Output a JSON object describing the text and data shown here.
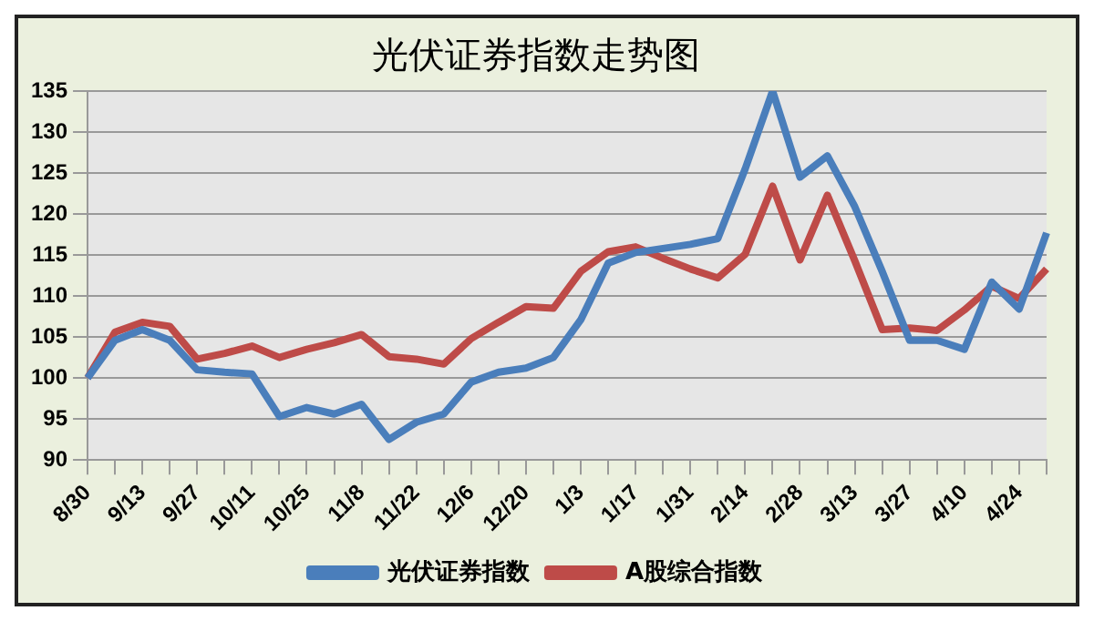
{
  "chart_data": {
    "type": "line",
    "title": "光伏证券指数走势图",
    "categories": [
      "8/30",
      null,
      "9/13",
      null,
      "9/27",
      null,
      "10/11",
      null,
      "10/25",
      null,
      "11/8",
      null,
      "11/22",
      null,
      "12/6",
      null,
      "12/20",
      null,
      "1/3",
      null,
      "1/17",
      null,
      "1/31",
      null,
      "2/14",
      null,
      "2/28",
      null,
      "3/13",
      null,
      "3/27",
      null,
      "4/10",
      null,
      "4/24",
      null
    ],
    "series": [
      {
        "name": "光伏证券指数",
        "color": "#4a7ebb",
        "values": [
          100,
          104.6,
          105.9,
          104.6,
          101,
          100.7,
          100.5,
          95.3,
          96.4,
          95.6,
          96.8,
          92.5,
          94.6,
          95.6,
          99.5,
          100.7,
          101.2,
          102.5,
          107.1,
          114,
          115.3,
          115.8,
          116.3,
          117,
          125.5,
          135,
          124.5,
          127.1,
          120.9,
          113,
          104.6,
          104.6,
          103.5,
          111.7,
          108.4,
          117.7
        ]
      },
      {
        "name": "A股综合指数",
        "color": "#be4b48",
        "values": [
          100,
          105.6,
          106.8,
          106.3,
          102.3,
          103,
          103.9,
          102.5,
          103.5,
          104.3,
          105.3,
          102.6,
          102.3,
          101.7,
          104.8,
          106.8,
          108.7,
          108.5,
          113,
          115.4,
          116,
          114.6,
          113.3,
          112.2,
          115.1,
          123.4,
          114.4,
          122.3,
          114.3,
          105.9,
          106.1,
          105.8,
          108.3,
          111.2,
          109.7,
          113.3
        ]
      }
    ],
    "ylim": [
      90,
      135
    ],
    "yticks": [
      90,
      95,
      100,
      105,
      110,
      115,
      120,
      125,
      130,
      135
    ],
    "grid": "y",
    "legend": "bottom",
    "marker": "none",
    "line_style": "solid"
  }
}
